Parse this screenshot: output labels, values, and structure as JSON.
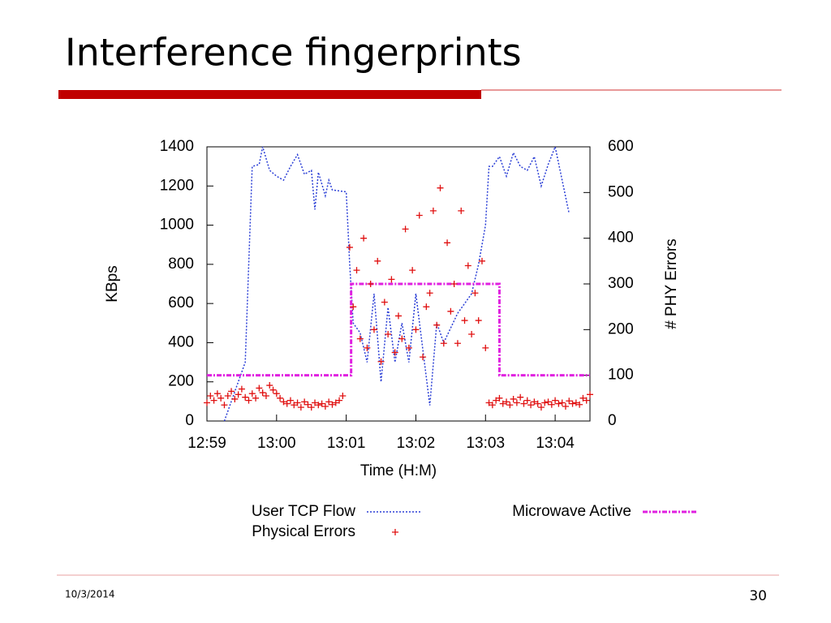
{
  "title": "Interference fingerprints",
  "date": "10/3/2014",
  "page_number": "30",
  "chart_data": {
    "type": "line",
    "xlabel": "Time (H:M)",
    "ylabel": "KBps",
    "y2label": "# PHY Errors",
    "xlim": [
      0,
      5.5
    ],
    "xticks": [
      {
        "value": 0,
        "label": "12:59"
      },
      {
        "value": 1,
        "label": "13:00"
      },
      {
        "value": 2,
        "label": "13:01"
      },
      {
        "value": 3,
        "label": "13:02"
      },
      {
        "value": 4,
        "label": "13:03"
      },
      {
        "value": 5,
        "label": "13:04"
      }
    ],
    "ylim": [
      0,
      1400
    ],
    "yticks": [
      0,
      200,
      400,
      600,
      800,
      1000,
      1200,
      1400
    ],
    "y2lim": [
      0,
      600
    ],
    "y2ticks": [
      0,
      100,
      200,
      300,
      400,
      500,
      600
    ],
    "series": [
      {
        "name": "User TCP Flow",
        "color": "#2b3fd6",
        "style": "dotted",
        "axis": "y",
        "x": [
          0.25,
          0.55,
          0.65,
          0.75,
          0.8,
          0.9,
          1.0,
          1.1,
          1.2,
          1.3,
          1.4,
          1.5,
          1.55,
          1.6,
          1.7,
          1.75,
          1.8,
          2.0,
          2.05,
          2.1,
          2.2,
          2.3,
          2.4,
          2.5,
          2.6,
          2.7,
          2.8,
          2.9,
          3.0,
          3.2,
          3.3,
          3.4,
          3.6,
          3.8,
          3.9,
          4.0,
          4.05,
          4.1,
          4.2,
          4.3,
          4.4,
          4.5,
          4.6,
          4.7,
          4.8,
          4.9,
          5.0,
          5.1,
          5.2
        ],
        "values": [
          0,
          300,
          1300,
          1310,
          1400,
          1280,
          1250,
          1230,
          1300,
          1360,
          1260,
          1280,
          1080,
          1270,
          1150,
          1230,
          1180,
          1170,
          800,
          500,
          450,
          300,
          650,
          200,
          580,
          300,
          500,
          300,
          650,
          80,
          500,
          400,
          550,
          650,
          800,
          1000,
          1300,
          1300,
          1350,
          1250,
          1370,
          1300,
          1280,
          1350,
          1200,
          1310,
          1400,
          1230,
          1060
        ]
      },
      {
        "name": "Microwave Active",
        "color": "#e020e0",
        "style": "dashed",
        "axis": "y2",
        "x": [
          0,
          2.07,
          2.07,
          4.2,
          4.2,
          5.5
        ],
        "values": [
          100,
          100,
          300,
          300,
          100,
          100
        ]
      },
      {
        "name": "Physical Errors",
        "color": "#e01010",
        "style": "plus",
        "axis": "y2",
        "x": [
          0,
          0.05,
          0.1,
          0.15,
          0.2,
          0.25,
          0.3,
          0.35,
          0.4,
          0.45,
          0.5,
          0.55,
          0.6,
          0.65,
          0.7,
          0.75,
          0.8,
          0.85,
          0.9,
          0.95,
          1.0,
          1.05,
          1.1,
          1.15,
          1.2,
          1.25,
          1.3,
          1.35,
          1.4,
          1.45,
          1.5,
          1.55,
          1.6,
          1.65,
          1.7,
          1.75,
          1.8,
          1.85,
          1.9,
          1.95,
          2.05,
          2.1,
          2.15,
          2.2,
          2.25,
          2.3,
          2.35,
          2.4,
          2.45,
          2.5,
          2.55,
          2.6,
          2.65,
          2.7,
          2.75,
          2.8,
          2.85,
          2.9,
          2.95,
          3.0,
          3.05,
          3.1,
          3.15,
          3.2,
          3.25,
          3.3,
          3.35,
          3.4,
          3.45,
          3.5,
          3.55,
          3.6,
          3.65,
          3.7,
          3.75,
          3.8,
          3.85,
          3.9,
          3.95,
          4.0,
          4.05,
          4.1,
          4.15,
          4.2,
          4.25,
          4.3,
          4.35,
          4.4,
          4.45,
          4.5,
          4.55,
          4.6,
          4.65,
          4.7,
          4.75,
          4.8,
          4.85,
          4.9,
          4.95,
          5.0,
          5.05,
          5.1,
          5.15,
          5.2,
          5.25,
          5.3,
          5.35,
          5.4,
          5.45,
          5.5
        ],
        "values": [
          40,
          55,
          45,
          60,
          50,
          35,
          55,
          65,
          48,
          58,
          70,
          52,
          45,
          60,
          50,
          72,
          62,
          55,
          78,
          68,
          60,
          50,
          42,
          38,
          45,
          35,
          40,
          30,
          42,
          36,
          30,
          40,
          35,
          38,
          32,
          42,
          36,
          40,
          45,
          55,
          380,
          250,
          330,
          180,
          400,
          160,
          300,
          200,
          350,
          130,
          260,
          190,
          310,
          150,
          230,
          180,
          420,
          160,
          330,
          200,
          450,
          140,
          250,
          280,
          460,
          210,
          510,
          170,
          390,
          240,
          300,
          170,
          460,
          220,
          340,
          190,
          280,
          220,
          350,
          160,
          40,
          35,
          45,
          50,
          38,
          42,
          35,
          48,
          40,
          52,
          38,
          45,
          35,
          42,
          38,
          30,
          40,
          42,
          36,
          45,
          38,
          40,
          32,
          44,
          38,
          40,
          36,
          50,
          45,
          58
        ]
      }
    ]
  }
}
